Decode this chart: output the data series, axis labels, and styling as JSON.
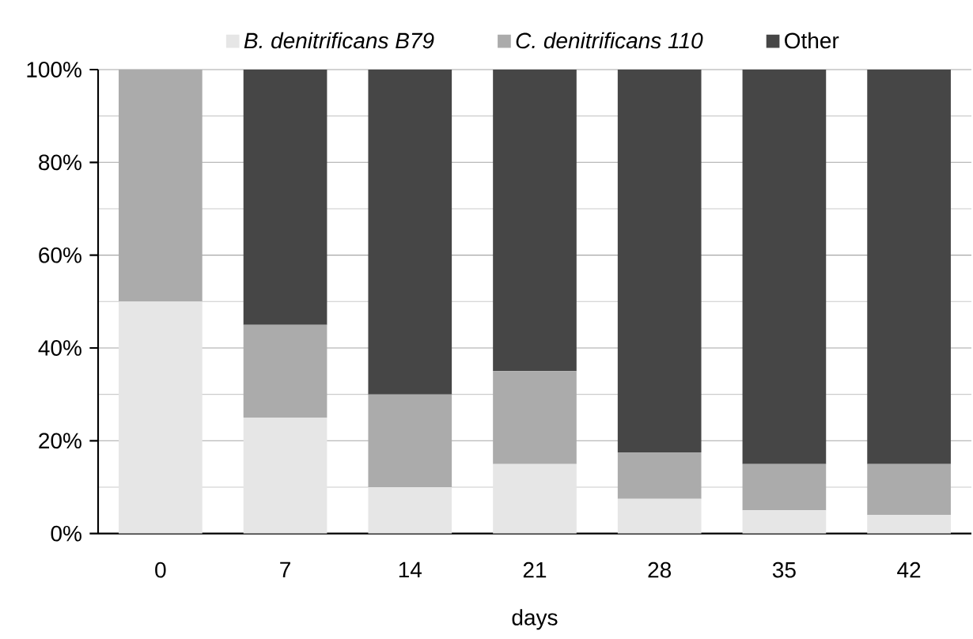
{
  "chart_data": {
    "type": "bar",
    "stacked": true,
    "xlabel": "days",
    "categories": [
      "0",
      "7",
      "14",
      "21",
      "28",
      "35",
      "42"
    ],
    "series": [
      {
        "name": "B. denitrificans B79",
        "color": "#e6e6e6",
        "values": [
          50,
          25,
          10,
          15,
          7.5,
          5,
          4
        ]
      },
      {
        "name": "C. denitrificans 110",
        "color": "#ababab",
        "values": [
          50,
          20,
          20,
          20,
          10,
          10,
          11
        ]
      },
      {
        "name": "Other",
        "color": "#464646",
        "values": [
          0,
          55,
          70,
          65,
          82.5,
          85,
          85
        ]
      }
    ],
    "ylim": [
      0,
      100
    ],
    "yticks": [
      {
        "value": 0,
        "label": "0%"
      },
      {
        "value": 20,
        "label": "20%"
      },
      {
        "value": 40,
        "label": "40%"
      },
      {
        "value": 60,
        "label": "60%"
      },
      {
        "value": 80,
        "label": "80%"
      },
      {
        "value": 100,
        "label": "100%"
      }
    ],
    "grid": "y",
    "legend": "top"
  }
}
